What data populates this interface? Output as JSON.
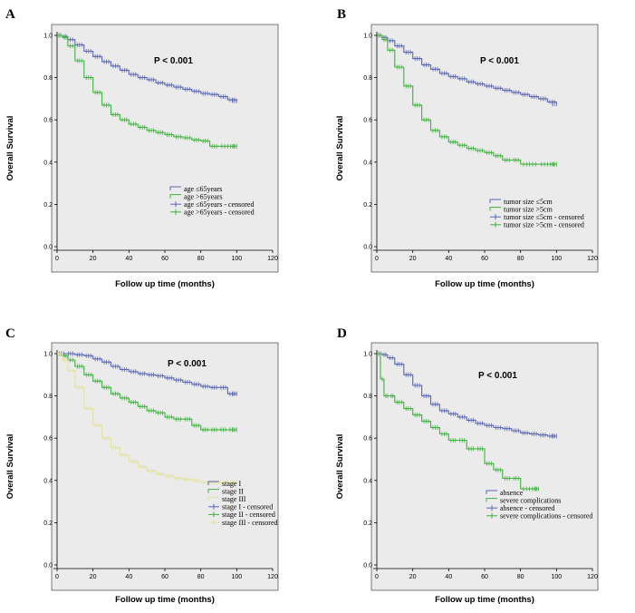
{
  "figure": {
    "colors": {
      "blue": "#5a66b4",
      "green": "#3fb23f",
      "yellow": "#e3e3a0"
    }
  },
  "chart_data": [
    {
      "panel": "A",
      "type": "line",
      "title": "",
      "pvalue": "P < 0.001",
      "xlabel": "Follow up time (months)",
      "ylabel": "Overall Survival",
      "xlim": [
        0,
        120
      ],
      "ylim": [
        0,
        1
      ],
      "xticks": [
        0,
        20,
        40,
        60,
        80,
        100,
        120
      ],
      "yticks": [
        0.0,
        0.2,
        0.4,
        0.6,
        0.8,
        1.0
      ],
      "legend": [
        "age ≤65years",
        "age >65years",
        "age ≤65years - censored",
        "age >65years - censored"
      ],
      "legend_colors": [
        "blue",
        "green",
        "blue",
        "green"
      ],
      "legend_kind": [
        "line",
        "line",
        "censor",
        "censor"
      ],
      "series": [
        {
          "name": "age ≤65years",
          "color": "blue",
          "x": [
            0,
            3,
            6,
            10,
            15,
            20,
            25,
            30,
            35,
            40,
            45,
            50,
            55,
            60,
            65,
            70,
            75,
            80,
            85,
            90,
            95,
            100
          ],
          "y": [
            1.0,
            0.995,
            0.98,
            0.955,
            0.925,
            0.9,
            0.875,
            0.855,
            0.835,
            0.815,
            0.8,
            0.79,
            0.775,
            0.765,
            0.755,
            0.745,
            0.735,
            0.725,
            0.72,
            0.71,
            0.695,
            0.69
          ]
        },
        {
          "name": "age >65years",
          "color": "green",
          "x": [
            0,
            3,
            6,
            10,
            15,
            20,
            25,
            30,
            35,
            40,
            45,
            50,
            55,
            60,
            65,
            70,
            75,
            80,
            85,
            90,
            100
          ],
          "y": [
            1.0,
            0.99,
            0.95,
            0.88,
            0.8,
            0.73,
            0.67,
            0.625,
            0.6,
            0.58,
            0.565,
            0.55,
            0.54,
            0.53,
            0.52,
            0.515,
            0.505,
            0.5,
            0.475,
            0.475,
            0.475
          ]
        }
      ]
    },
    {
      "panel": "B",
      "type": "line",
      "title": "",
      "pvalue": "P < 0.001",
      "xlabel": "Follow up time (months)",
      "ylabel": "Overall Survival",
      "xlim": [
        0,
        120
      ],
      "ylim": [
        0,
        1
      ],
      "xticks": [
        0,
        20,
        40,
        60,
        80,
        100,
        120
      ],
      "yticks": [
        0.0,
        0.2,
        0.4,
        0.6,
        0.8,
        1.0
      ],
      "legend": [
        "tumor size ≤5cm",
        "tumor size >5cm",
        "tumor size ≤5cm - censored",
        "tumor size >5cm - censored"
      ],
      "legend_colors": [
        "blue",
        "green",
        "blue",
        "green"
      ],
      "legend_kind": [
        "line",
        "line",
        "censor",
        "censor"
      ],
      "series": [
        {
          "name": "tumor size ≤5cm",
          "color": "blue",
          "x": [
            0,
            3,
            6,
            10,
            15,
            20,
            25,
            30,
            35,
            40,
            45,
            50,
            55,
            60,
            65,
            70,
            75,
            80,
            85,
            90,
            95,
            100
          ],
          "y": [
            1.0,
            0.99,
            0.975,
            0.95,
            0.92,
            0.89,
            0.86,
            0.84,
            0.82,
            0.805,
            0.795,
            0.78,
            0.77,
            0.76,
            0.75,
            0.74,
            0.73,
            0.72,
            0.71,
            0.7,
            0.685,
            0.675
          ]
        },
        {
          "name": "tumor size >5cm",
          "color": "green",
          "x": [
            0,
            3,
            6,
            10,
            15,
            20,
            25,
            30,
            35,
            40,
            45,
            50,
            55,
            60,
            65,
            70,
            75,
            80,
            90,
            100
          ],
          "y": [
            1.0,
            0.98,
            0.93,
            0.85,
            0.76,
            0.67,
            0.6,
            0.55,
            0.52,
            0.495,
            0.48,
            0.465,
            0.455,
            0.445,
            0.43,
            0.41,
            0.41,
            0.39,
            0.39,
            0.39
          ]
        }
      ]
    },
    {
      "panel": "C",
      "type": "line",
      "title": "",
      "pvalue": "P < 0.001",
      "xlabel": "Follow up time (months)",
      "ylabel": "Overall Survival",
      "xlim": [
        0,
        120
      ],
      "ylim": [
        0,
        1
      ],
      "xticks": [
        0,
        20,
        40,
        60,
        80,
        100,
        120
      ],
      "yticks": [
        0.0,
        0.2,
        0.4,
        0.6,
        0.8,
        1.0
      ],
      "legend": [
        "stage I",
        "stage II",
        "stage III",
        "stage I  - censored",
        "stage II  - censored",
        "stage III  - censored"
      ],
      "legend_colors": [
        "blue",
        "green",
        "yellow",
        "blue",
        "green",
        "yellow"
      ],
      "legend_kind": [
        "line",
        "line",
        "line",
        "censor",
        "censor",
        "censor"
      ],
      "series": [
        {
          "name": "stage I",
          "color": "blue",
          "x": [
            0,
            5,
            10,
            15,
            20,
            25,
            30,
            35,
            40,
            45,
            50,
            55,
            60,
            65,
            70,
            75,
            80,
            85,
            90,
            95,
            100
          ],
          "y": [
            1.0,
            1.0,
            0.995,
            0.99,
            0.975,
            0.96,
            0.94,
            0.925,
            0.915,
            0.905,
            0.9,
            0.895,
            0.885,
            0.875,
            0.865,
            0.855,
            0.845,
            0.84,
            0.84,
            0.81,
            0.81
          ]
        },
        {
          "name": "stage II",
          "color": "green",
          "x": [
            0,
            3,
            6,
            10,
            15,
            20,
            25,
            30,
            35,
            40,
            45,
            50,
            55,
            60,
            65,
            70,
            75,
            80,
            85,
            90,
            95,
            100
          ],
          "y": [
            1.0,
            0.99,
            0.97,
            0.94,
            0.9,
            0.87,
            0.84,
            0.81,
            0.79,
            0.77,
            0.75,
            0.73,
            0.72,
            0.7,
            0.69,
            0.69,
            0.66,
            0.64,
            0.64,
            0.64,
            0.64,
            0.64
          ]
        },
        {
          "name": "stage III",
          "color": "yellow",
          "x": [
            0,
            3,
            6,
            10,
            15,
            20,
            25,
            30,
            35,
            40,
            45,
            50,
            55,
            60,
            65,
            70,
            75,
            80,
            90,
            100
          ],
          "y": [
            1.0,
            0.97,
            0.92,
            0.84,
            0.74,
            0.66,
            0.6,
            0.555,
            0.52,
            0.49,
            0.465,
            0.445,
            0.43,
            0.42,
            0.41,
            0.405,
            0.4,
            0.39,
            0.39,
            0.39
          ]
        }
      ]
    },
    {
      "panel": "D",
      "type": "line",
      "title": "",
      "pvalue": "P < 0.001",
      "xlabel": "Follow up time (months)",
      "ylabel": "Overall Survival",
      "xlim": [
        0,
        120
      ],
      "ylim": [
        0,
        1
      ],
      "xticks": [
        0,
        20,
        40,
        60,
        80,
        100,
        120
      ],
      "yticks": [
        0.0,
        0.2,
        0.4,
        0.6,
        0.8,
        1.0
      ],
      "legend": [
        "absence",
        "severe complications",
        "absence - censored",
        "severe complications - censored"
      ],
      "legend_colors": [
        "blue",
        "green",
        "blue",
        "green"
      ],
      "legend_kind": [
        "line",
        "line",
        "censor",
        "censor"
      ],
      "series": [
        {
          "name": "absence",
          "color": "blue",
          "x": [
            0,
            3,
            6,
            10,
            15,
            20,
            25,
            30,
            35,
            40,
            45,
            50,
            55,
            60,
            65,
            70,
            75,
            80,
            85,
            90,
            95,
            100
          ],
          "y": [
            1.0,
            0.995,
            0.98,
            0.95,
            0.9,
            0.85,
            0.8,
            0.76,
            0.73,
            0.715,
            0.7,
            0.685,
            0.67,
            0.66,
            0.65,
            0.645,
            0.635,
            0.625,
            0.62,
            0.615,
            0.61,
            0.61
          ]
        },
        {
          "name": "severe complications",
          "color": "green",
          "x": [
            0,
            2,
            4,
            7,
            10,
            15,
            20,
            25,
            30,
            35,
            40,
            45,
            50,
            55,
            60,
            65,
            70,
            75,
            80,
            90
          ],
          "y": [
            1.0,
            0.88,
            0.8,
            0.8,
            0.77,
            0.74,
            0.71,
            0.68,
            0.65,
            0.62,
            0.59,
            0.59,
            0.55,
            0.55,
            0.48,
            0.45,
            0.41,
            0.41,
            0.36,
            0.36
          ]
        }
      ]
    }
  ]
}
